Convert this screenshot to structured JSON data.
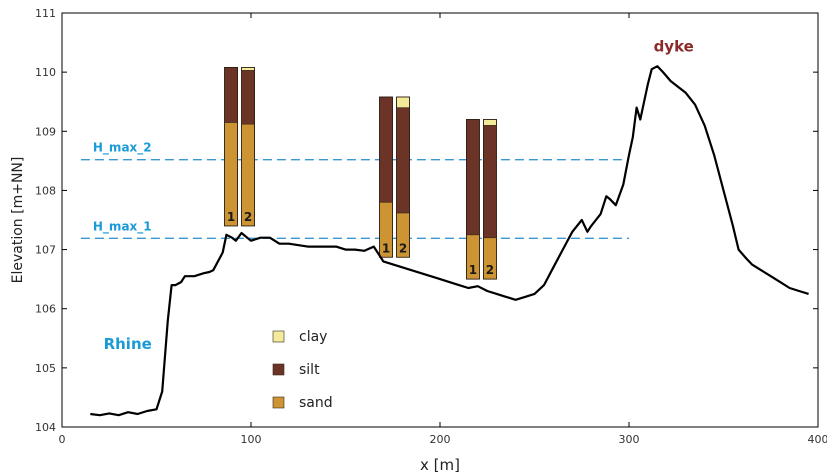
{
  "chart_data": {
    "type": "line",
    "title": "",
    "xlabel": "x [m]",
    "ylabel": "Elevation [m+NN]",
    "xlim": [
      0,
      400
    ],
    "ylim": [
      104,
      111
    ],
    "xticks": [
      0,
      100,
      200,
      300,
      400
    ],
    "yticks": [
      104,
      105,
      106,
      107,
      108,
      109,
      110,
      111
    ],
    "grid": false,
    "profile": {
      "x": [
        15,
        20,
        25,
        30,
        35,
        40,
        45,
        50,
        53,
        56,
        58,
        60,
        63,
        65,
        70,
        75,
        78,
        80,
        85,
        87,
        90,
        92,
        95,
        98,
        100,
        105,
        110,
        115,
        120,
        130,
        140,
        145,
        150,
        155,
        160,
        165,
        170,
        180,
        190,
        200,
        205,
        210,
        215,
        220,
        225,
        230,
        235,
        240,
        245,
        250,
        255,
        260,
        265,
        270,
        275,
        278,
        280,
        285,
        288,
        290,
        293,
        297,
        300,
        302,
        304,
        306,
        308,
        310,
        312,
        315,
        318,
        322,
        326,
        330,
        335,
        340,
        345,
        350,
        355,
        358,
        362,
        365,
        370,
        375,
        380,
        385,
        390,
        395
      ],
      "y": [
        104.22,
        104.2,
        104.23,
        104.2,
        104.25,
        104.22,
        104.27,
        104.3,
        104.6,
        105.8,
        106.4,
        106.4,
        106.45,
        106.55,
        106.55,
        106.6,
        106.62,
        106.65,
        106.95,
        107.25,
        107.2,
        107.15,
        107.28,
        107.2,
        107.15,
        107.2,
        107.2,
        107.1,
        107.1,
        107.05,
        107.05,
        107.05,
        107.0,
        107.0,
        106.98,
        107.05,
        106.8,
        106.7,
        106.6,
        106.5,
        106.45,
        106.4,
        106.35,
        106.38,
        106.3,
        106.25,
        106.2,
        106.15,
        106.2,
        106.25,
        106.4,
        106.7,
        107.0,
        107.3,
        107.5,
        107.3,
        107.4,
        107.6,
        107.9,
        107.85,
        107.75,
        108.1,
        108.6,
        108.9,
        109.4,
        109.2,
        109.5,
        109.8,
        110.05,
        110.1,
        110.0,
        109.85,
        109.75,
        109.65,
        109.45,
        109.1,
        108.6,
        108.0,
        107.4,
        107.0,
        106.85,
        106.75,
        106.65,
        106.55,
        106.45,
        106.35,
        106.3,
        106.25
      ]
    },
    "reference_lines": [
      {
        "name": "H_max_2",
        "y": 108.52,
        "x": [
          10,
          300
        ]
      },
      {
        "name": "H_max_1",
        "y": 107.19,
        "x": [
          10,
          300
        ]
      }
    ],
    "cores": [
      {
        "label": "1",
        "x": 86,
        "layers": [
          {
            "material": "sand",
            "from": 107.4,
            "to": 109.15
          },
          {
            "material": "silt",
            "from": 109.15,
            "to": 110.08
          }
        ]
      },
      {
        "label": "2",
        "x": 95,
        "layers": [
          {
            "material": "sand",
            "from": 107.4,
            "to": 109.12
          },
          {
            "material": "silt",
            "from": 109.12,
            "to": 110.03
          },
          {
            "material": "clay",
            "from": 110.03,
            "to": 110.08
          }
        ]
      },
      {
        "label": "1",
        "x": 168,
        "layers": [
          {
            "material": "sand",
            "from": 106.87,
            "to": 107.8
          },
          {
            "material": "silt",
            "from": 107.8,
            "to": 109.58
          }
        ]
      },
      {
        "label": "2",
        "x": 177,
        "layers": [
          {
            "material": "sand",
            "from": 106.87,
            "to": 107.62
          },
          {
            "material": "silt",
            "from": 107.62,
            "to": 109.4
          },
          {
            "material": "clay",
            "from": 109.4,
            "to": 109.58
          }
        ]
      },
      {
        "label": "1",
        "x": 214,
        "layers": [
          {
            "material": "sand",
            "from": 106.5,
            "to": 107.25
          },
          {
            "material": "silt",
            "from": 107.25,
            "to": 109.2
          }
        ]
      },
      {
        "label": "2",
        "x": 223,
        "layers": [
          {
            "material": "sand",
            "from": 106.5,
            "to": 107.2
          },
          {
            "material": "silt",
            "from": 107.2,
            "to": 109.1
          },
          {
            "material": "clay",
            "from": 109.1,
            "to": 109.2
          }
        ]
      }
    ],
    "annotations": [
      {
        "text": "dyke",
        "x": 313,
        "y": 110.35,
        "color": "#8b2a2a"
      },
      {
        "text": "Rhine",
        "x": 22,
        "y": 105.32,
        "color": "#1a9ad6"
      }
    ],
    "legend": {
      "position": "center-bottom",
      "entries": [
        {
          "label": "clay",
          "color": "#f3ea9a"
        },
        {
          "label": "silt",
          "color": "#6b3426"
        },
        {
          "label": "sand",
          "color": "#cd9434"
        }
      ]
    },
    "colors": {
      "profile": "#000000",
      "reference_line": "#3b97cf",
      "reference_label": "#1a9ad6",
      "core_label": "#1a1a1a"
    }
  }
}
